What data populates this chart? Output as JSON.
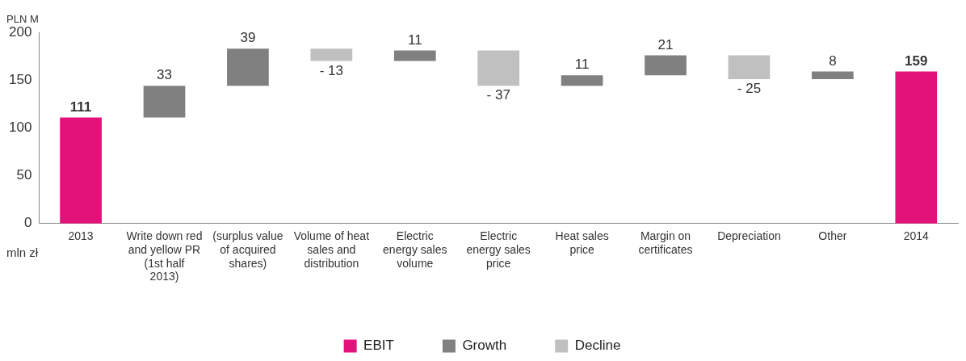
{
  "chart_data": {
    "type": "bar",
    "ylabel": "PLN M",
    "annotations": [
      "mln zł"
    ],
    "categories": [
      "2013",
      "Write down red and yellow PR (1st half 2013)",
      "(surplus value of acquired shares)",
      "Volume of heat sales and distribution",
      "Electric energy sales volume",
      "Electric energy sales price",
      "Heat sales price",
      "Margin on certificates",
      "Depreciation",
      "Other",
      "2014"
    ],
    "series": [
      {
        "name": "EBIT",
        "color": "#e2127a",
        "base": [
          0,
          null,
          null,
          null,
          null,
          null,
          null,
          null,
          null,
          null,
          0
        ],
        "values": [
          111,
          null,
          null,
          null,
          null,
          null,
          null,
          null,
          null,
          null,
          159
        ],
        "value_labels": [
          "111",
          null,
          null,
          null,
          null,
          null,
          null,
          null,
          null,
          null,
          "159"
        ]
      },
      {
        "name": "Growth",
        "color": "#808080",
        "base": [
          null,
          111,
          144,
          null,
          170,
          null,
          144,
          155,
          null,
          151,
          null
        ],
        "values": [
          null,
          33,
          39,
          null,
          11,
          null,
          11,
          21,
          null,
          8,
          null
        ],
        "value_labels": [
          null,
          "33",
          "39",
          null,
          "11",
          null,
          "11",
          "21",
          null,
          "8",
          null
        ]
      },
      {
        "name": "Decline",
        "color": "#c0c0c0",
        "base": [
          null,
          null,
          null,
          183,
          null,
          181,
          null,
          null,
          176,
          null,
          null
        ],
        "values": [
          null,
          null,
          null,
          -13,
          null,
          -37,
          null,
          null,
          -25,
          null,
          null
        ],
        "value_labels": [
          null,
          null,
          null,
          "- 13",
          null,
          "- 37",
          null,
          null,
          "- 25",
          null,
          null
        ]
      }
    ],
    "ylim": [
      0,
      200
    ],
    "yticks": [
      0,
      50,
      100,
      150,
      200
    ],
    "grid": false,
    "legend": "bottom"
  }
}
